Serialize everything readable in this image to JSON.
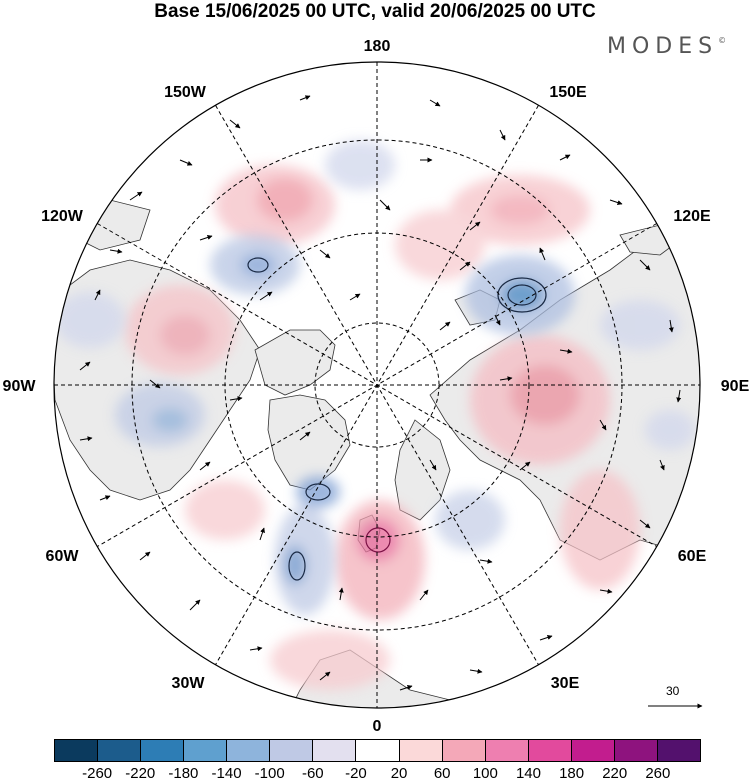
{
  "title": "Base 15/06/2025 00 UTC, valid 20/06/2025 00 UTC",
  "brand": "MODES",
  "brand_mark": "©",
  "map": {
    "projection": "north-polar-stereographic",
    "meridian_labels": [
      "180",
      "150E",
      "120E",
      "90E",
      "60E",
      "30E",
      "0",
      "30W",
      "60W",
      "90W",
      "120W",
      "150W"
    ],
    "reference_vector_label": "30",
    "land_color": "#ebebeb",
    "ocean_color": "#ffffff",
    "positive_color": "#f4a8b0",
    "negative_color": "#7d9ed3"
  },
  "colorbar": {
    "colors": [
      "#0b3a5e",
      "#1c5c8c",
      "#2d7db5",
      "#5fa0cf",
      "#8eb4dc",
      "#bfc9e5",
      "#e3e0ef",
      "#ffffff",
      "#fbd9d9",
      "#f4a8b8",
      "#ee7fb0",
      "#e24a9d",
      "#c21d8e",
      "#8e137e",
      "#53116d"
    ],
    "ticks": [
      "-260",
      "-220",
      "-180",
      "-140",
      "-100",
      "-60",
      "-20",
      "20",
      "60",
      "100",
      "140",
      "180",
      "220",
      "260"
    ]
  }
}
